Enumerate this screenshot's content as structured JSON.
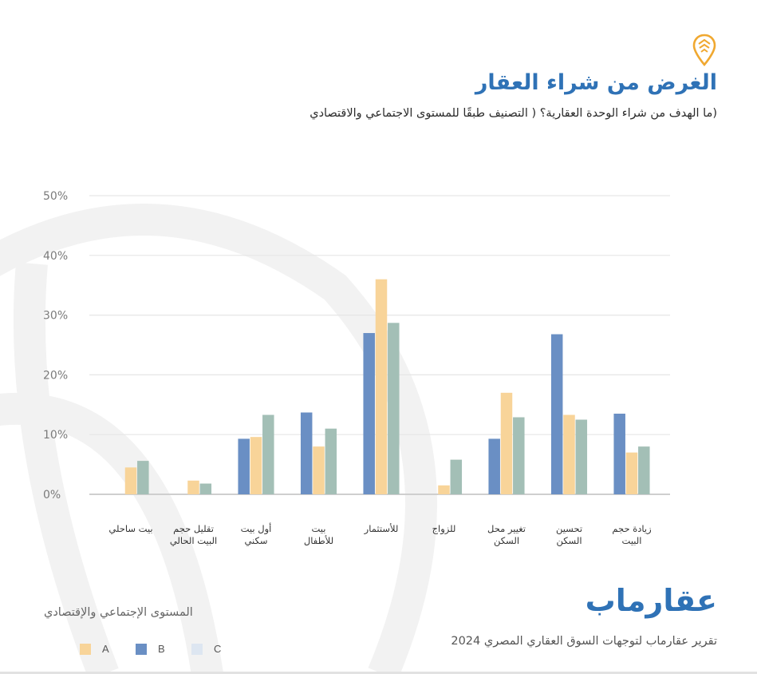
{
  "header": {
    "title": "الغرض من شراء العقار",
    "subtitle": "(ما الهدف من شراء الوحدة العقارية؟ ( التصنيف طبقًا للمستوى الاجتماعي والاقتصادي"
  },
  "footer": {
    "brand": "عقارماب",
    "report": "تقرير عقارماب لتوجهات السوق العقاري المصري 2024"
  },
  "legend": {
    "title": "المستوى الإجتماعي والإقتصادي",
    "items": [
      {
        "label": "A",
        "color": "#f8d499"
      },
      {
        "label": "B",
        "color": "#6a8fc4"
      },
      {
        "label": "C",
        "color": "#dde6f1"
      }
    ]
  },
  "colors": {
    "accent": "#2f72b6",
    "pin": "#f0a830",
    "A": "#f8d499",
    "B": "#6a8fc4",
    "C": "#a3bfb6"
  },
  "chart_data": {
    "type": "bar",
    "categories": [
      "زيادة حجم\nالبيت",
      "تحسين\nالسكن",
      "تغيير محل\nالسكن",
      "للزواج",
      "للأستثمار",
      "بيت\nللأطفال",
      "أول بيت\nسكني",
      "تقليل حجم\nالبيت الحالي",
      "بيت ساحلي"
    ],
    "series": [
      {
        "name": "B",
        "values": [
          13.5,
          26.8,
          9.3,
          0,
          27.0,
          13.7,
          9.3,
          0,
          0
        ]
      },
      {
        "name": "A",
        "values": [
          7.0,
          13.3,
          17.0,
          1.5,
          36.0,
          8.0,
          9.6,
          2.3,
          4.5
        ]
      },
      {
        "name": "C",
        "values": [
          8.0,
          12.5,
          12.9,
          5.8,
          28.7,
          11.0,
          13.3,
          1.8,
          5.6
        ]
      }
    ],
    "yticks": [
      "0%",
      "10%",
      "20%",
      "30%",
      "40%",
      "50%"
    ],
    "ylim": [
      0,
      50
    ],
    "grid": true,
    "legend_position": "bottom-left"
  }
}
